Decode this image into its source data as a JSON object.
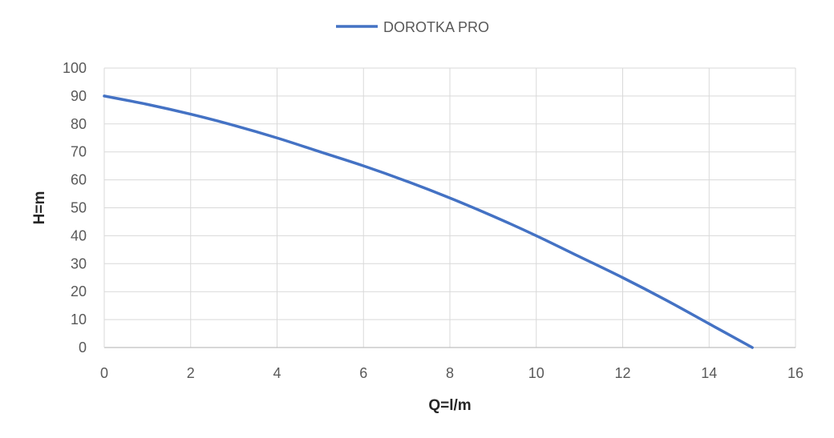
{
  "chart_data": {
    "type": "line",
    "xlabel": "Q=l/m",
    "ylabel": "H=m",
    "xlim": [
      0,
      16
    ],
    "ylim": [
      0,
      100
    ],
    "xticks": [
      "0",
      "2",
      "4",
      "6",
      "8",
      "10",
      "12",
      "14",
      "16"
    ],
    "yticks": [
      "0",
      "10",
      "20",
      "30",
      "40",
      "50",
      "60",
      "70",
      "80",
      "90",
      "100"
    ],
    "grid": true,
    "legend_position": "top-center",
    "series": [
      {
        "name": "DOROTKA PRO",
        "color": "#4472c4",
        "x": [
          0,
          1,
          2,
          3,
          4,
          5,
          6,
          7,
          8,
          9,
          10,
          11,
          12,
          13,
          14,
          15
        ],
        "y": [
          90,
          87,
          83.5,
          79.5,
          75,
          70,
          65,
          59.5,
          53.5,
          47,
          40,
          32.5,
          25,
          17,
          8.5,
          0
        ]
      }
    ]
  }
}
